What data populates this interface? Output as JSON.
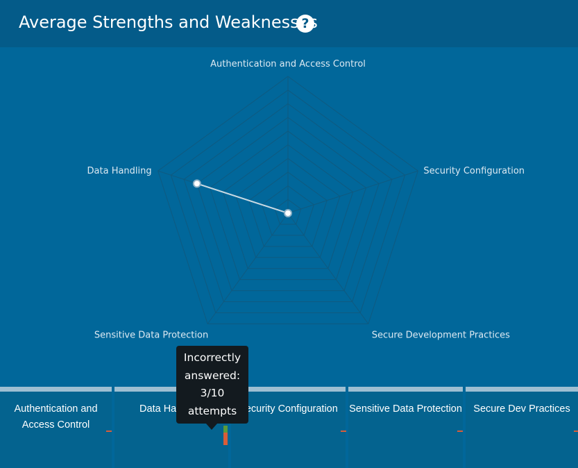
{
  "header": {
    "title": "Average Strengths and Weaknesses",
    "help_icon": "question-circle-icon"
  },
  "chart_data": {
    "type": "radar",
    "axes": [
      "Authentication and Access Control",
      "Security Configuration",
      "Secure Development Practices",
      "Sensitive Data Protection",
      "Data Handling"
    ],
    "rings": 10,
    "range": [
      0,
      10
    ],
    "series": [
      {
        "values": [
          0,
          0,
          0,
          0,
          7
        ]
      }
    ],
    "colors": {
      "grid": "#0f5a80",
      "line": "#c8d9e3",
      "point_fill": "#ffffff",
      "point_stroke": "#8db1c7"
    }
  },
  "categories": [
    {
      "label": "Authentication and Access Control"
    },
    {
      "label": "Data Handling"
    },
    {
      "label": "Security Configuration"
    },
    {
      "label": "Sensitive Data Protection"
    },
    {
      "label": "Secure Dev Practices"
    }
  ],
  "tooltip": {
    "text": "Incorrectly answered: 3/10 attempts"
  },
  "colors": {
    "background": "#01679a",
    "header": "#045b89",
    "incorrect": "#d95d39",
    "correct": "#5b9a3a"
  }
}
